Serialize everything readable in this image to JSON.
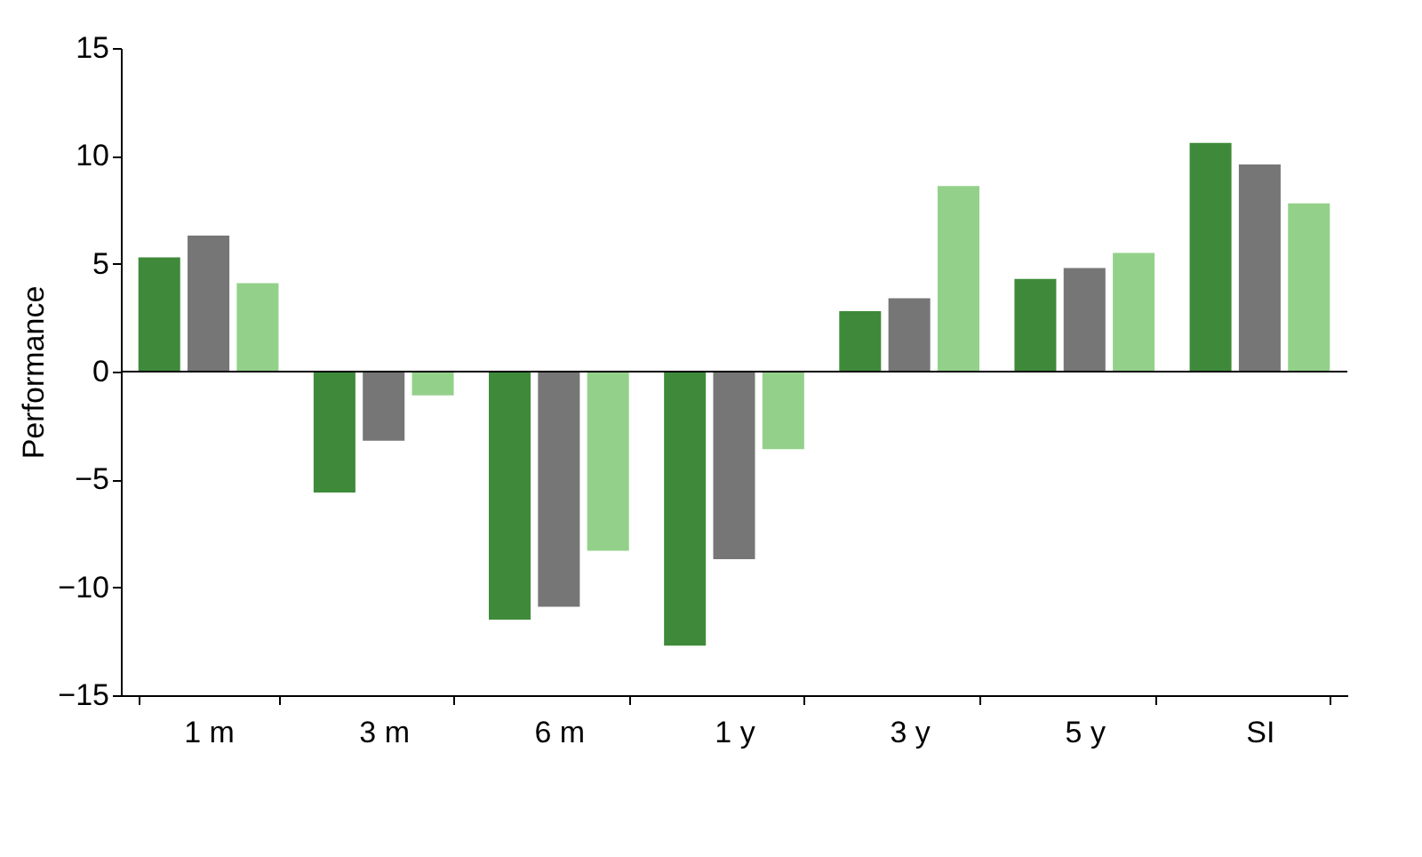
{
  "chart_data": {
    "type": "bar",
    "ylabel": "Performance",
    "categories": [
      "1 m",
      "3 m",
      "6 m",
      "1 y",
      "3 y",
      "5 y",
      "SI"
    ],
    "series": [
      {
        "color": "#3f8a3a",
        "values": [
          5.3,
          -5.6,
          -11.5,
          -12.7,
          2.8,
          4.3,
          10.6
        ]
      },
      {
        "color": "#767676",
        "values": [
          6.3,
          -3.2,
          -10.9,
          -8.7,
          3.4,
          4.8,
          9.6
        ]
      },
      {
        "color": "#93d18a",
        "values": [
          4.1,
          -1.1,
          -8.3,
          -3.6,
          8.6,
          5.5,
          7.8
        ]
      }
    ],
    "ylim": [
      -15,
      15
    ],
    "yticks": [
      -15,
      -10,
      -5,
      0,
      5,
      10,
      15
    ],
    "grid": false,
    "ref_lines": [
      {
        "axis": "y",
        "value": 0
      }
    ]
  }
}
